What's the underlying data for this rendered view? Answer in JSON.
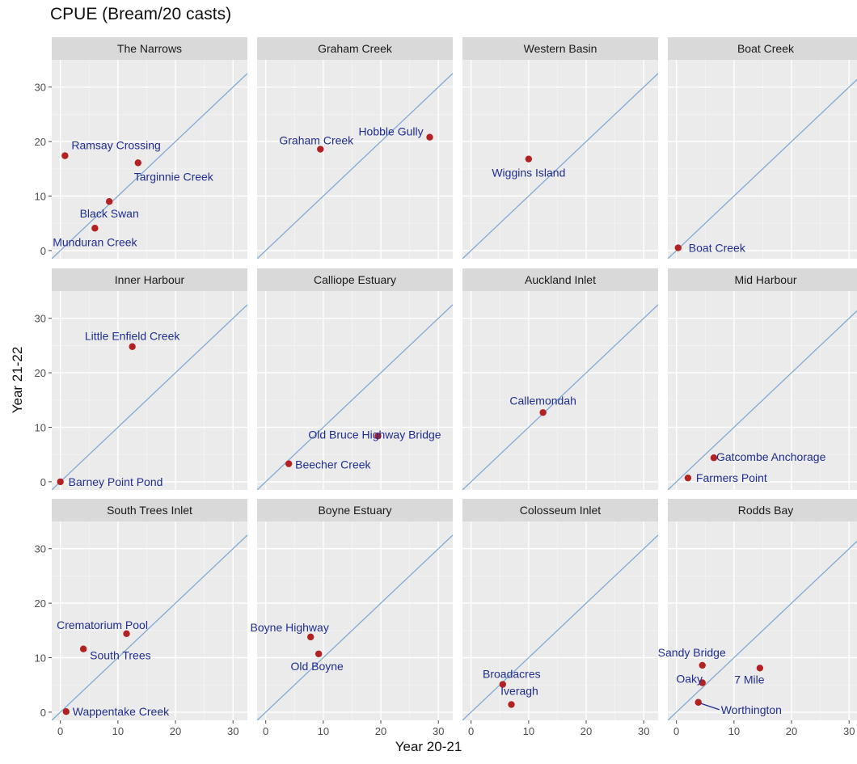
{
  "title": "CPUE (Bream/20 casts)",
  "chart_data": {
    "type": "scatter",
    "title": "CPUE (Bream/20 casts)",
    "xlabel": "Year 20-21",
    "ylabel": "Year 21-22",
    "xlim": [
      -1.5,
      32.5
    ],
    "ylim": [
      -1.5,
      35
    ],
    "x_ticks": [
      0,
      10,
      20,
      30
    ],
    "y_ticks": [
      0,
      10,
      20,
      30
    ],
    "grid": true,
    "reference_line": "y = x",
    "colors": {
      "point": "#b22222",
      "label": "#1f2d8f",
      "reference_line": "#7fa9d6",
      "panel_bg": "#ebebeb",
      "strip_bg": "#d9d9d9"
    },
    "facets": [
      {
        "name": "The Narrows",
        "points": [
          {
            "label": "Ramsay Crossing",
            "x": 0.8,
            "y": 17.4
          },
          {
            "label": "Targinnie Creek",
            "x": 13.5,
            "y": 16.1
          },
          {
            "label": "Black Swan",
            "x": 8.5,
            "y": 9.0
          },
          {
            "label": "Munduran Creek",
            "x": 6.0,
            "y": 4.1
          }
        ]
      },
      {
        "name": "Graham Creek",
        "points": [
          {
            "label": "Graham Creek",
            "x": 9.5,
            "y": 18.6
          },
          {
            "label": "Hobble Gully",
            "x": 28.5,
            "y": 20.8
          }
        ]
      },
      {
        "name": "Western Basin",
        "points": [
          {
            "label": "Wiggins Island",
            "x": 10.0,
            "y": 16.8
          }
        ]
      },
      {
        "name": "Boat Creek",
        "points": [
          {
            "label": "Boat Creek",
            "x": 0.3,
            "y": 0.5
          }
        ]
      },
      {
        "name": "Inner Harbour",
        "points": [
          {
            "label": "Little Enfield Creek",
            "x": 12.5,
            "y": 24.8
          },
          {
            "label": "Barney Point Pond",
            "x": 0.0,
            "y": 0.0
          }
        ]
      },
      {
        "name": "Calliope Estuary",
        "points": [
          {
            "label": "Old Bruce Highway Bridge",
            "x": 19.5,
            "y": 8.4
          },
          {
            "label": "Beecher Creek",
            "x": 4.0,
            "y": 3.3
          }
        ]
      },
      {
        "name": "Auckland Inlet",
        "points": [
          {
            "label": "Callemondah",
            "x": 12.5,
            "y": 12.7
          }
        ]
      },
      {
        "name": "Mid Harbour",
        "points": [
          {
            "label": "Gatcombe Anchorage",
            "x": 6.5,
            "y": 4.4
          },
          {
            "label": "Farmers Point",
            "x": 2.0,
            "y": 0.7
          }
        ]
      },
      {
        "name": "South Trees Inlet",
        "points": [
          {
            "label": "Crematorium Pool",
            "x": 11.5,
            "y": 14.4
          },
          {
            "label": "South Trees",
            "x": 4.0,
            "y": 11.6
          },
          {
            "label": "Wappentake Creek",
            "x": 1.0,
            "y": 0.1
          }
        ]
      },
      {
        "name": "Boyne Estuary",
        "points": [
          {
            "label": "Boyne Highway",
            "x": 7.8,
            "y": 13.8
          },
          {
            "label": "Old Boyne",
            "x": 9.2,
            "y": 10.7
          }
        ]
      },
      {
        "name": "Colosseum Inlet",
        "points": [
          {
            "label": "Broadacres",
            "x": 5.5,
            "y": 5.1
          },
          {
            "label": "Iveragh",
            "x": 7.0,
            "y": 1.4
          }
        ]
      },
      {
        "name": "Rodds Bay",
        "points": [
          {
            "label": "Sandy Bridge",
            "x": 4.5,
            "y": 8.6
          },
          {
            "label": "7 Mile",
            "x": 14.5,
            "y": 8.1
          },
          {
            "label": "Oaky",
            "x": 4.5,
            "y": 5.4
          },
          {
            "label": "Worthington",
            "x": 3.8,
            "y": 1.8
          }
        ]
      }
    ]
  }
}
